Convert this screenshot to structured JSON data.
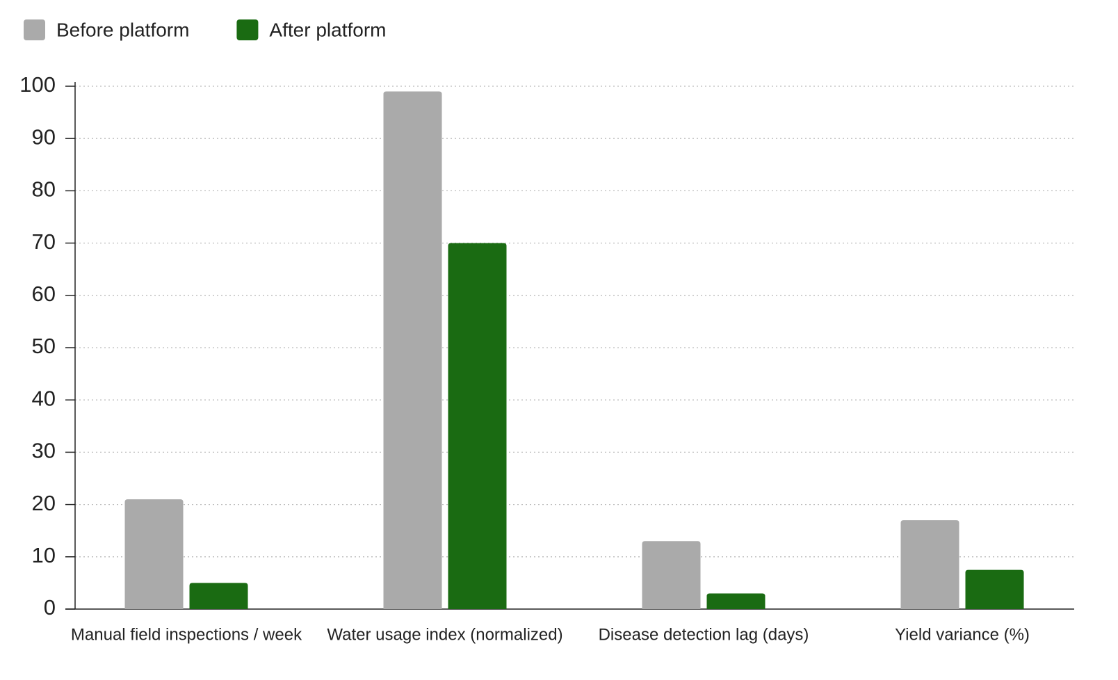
{
  "chart_data": {
    "type": "bar",
    "categories": [
      "Manual field inspections / week",
      "Water usage index (normalized)",
      "Disease detection lag (days)",
      "Yield variance (%)"
    ],
    "series": [
      {
        "name": "Before platform",
        "color": "#aaaaaa",
        "values": [
          21,
          99,
          13,
          17
        ]
      },
      {
        "name": "After platform",
        "color": "#1a6b12",
        "values": [
          5,
          70,
          3,
          7.5
        ]
      }
    ],
    "ylim": [
      0,
      100
    ],
    "yticks": [
      0,
      10,
      20,
      30,
      40,
      50,
      60,
      70,
      80,
      90,
      100
    ],
    "grid": true,
    "legend": "top-left"
  }
}
